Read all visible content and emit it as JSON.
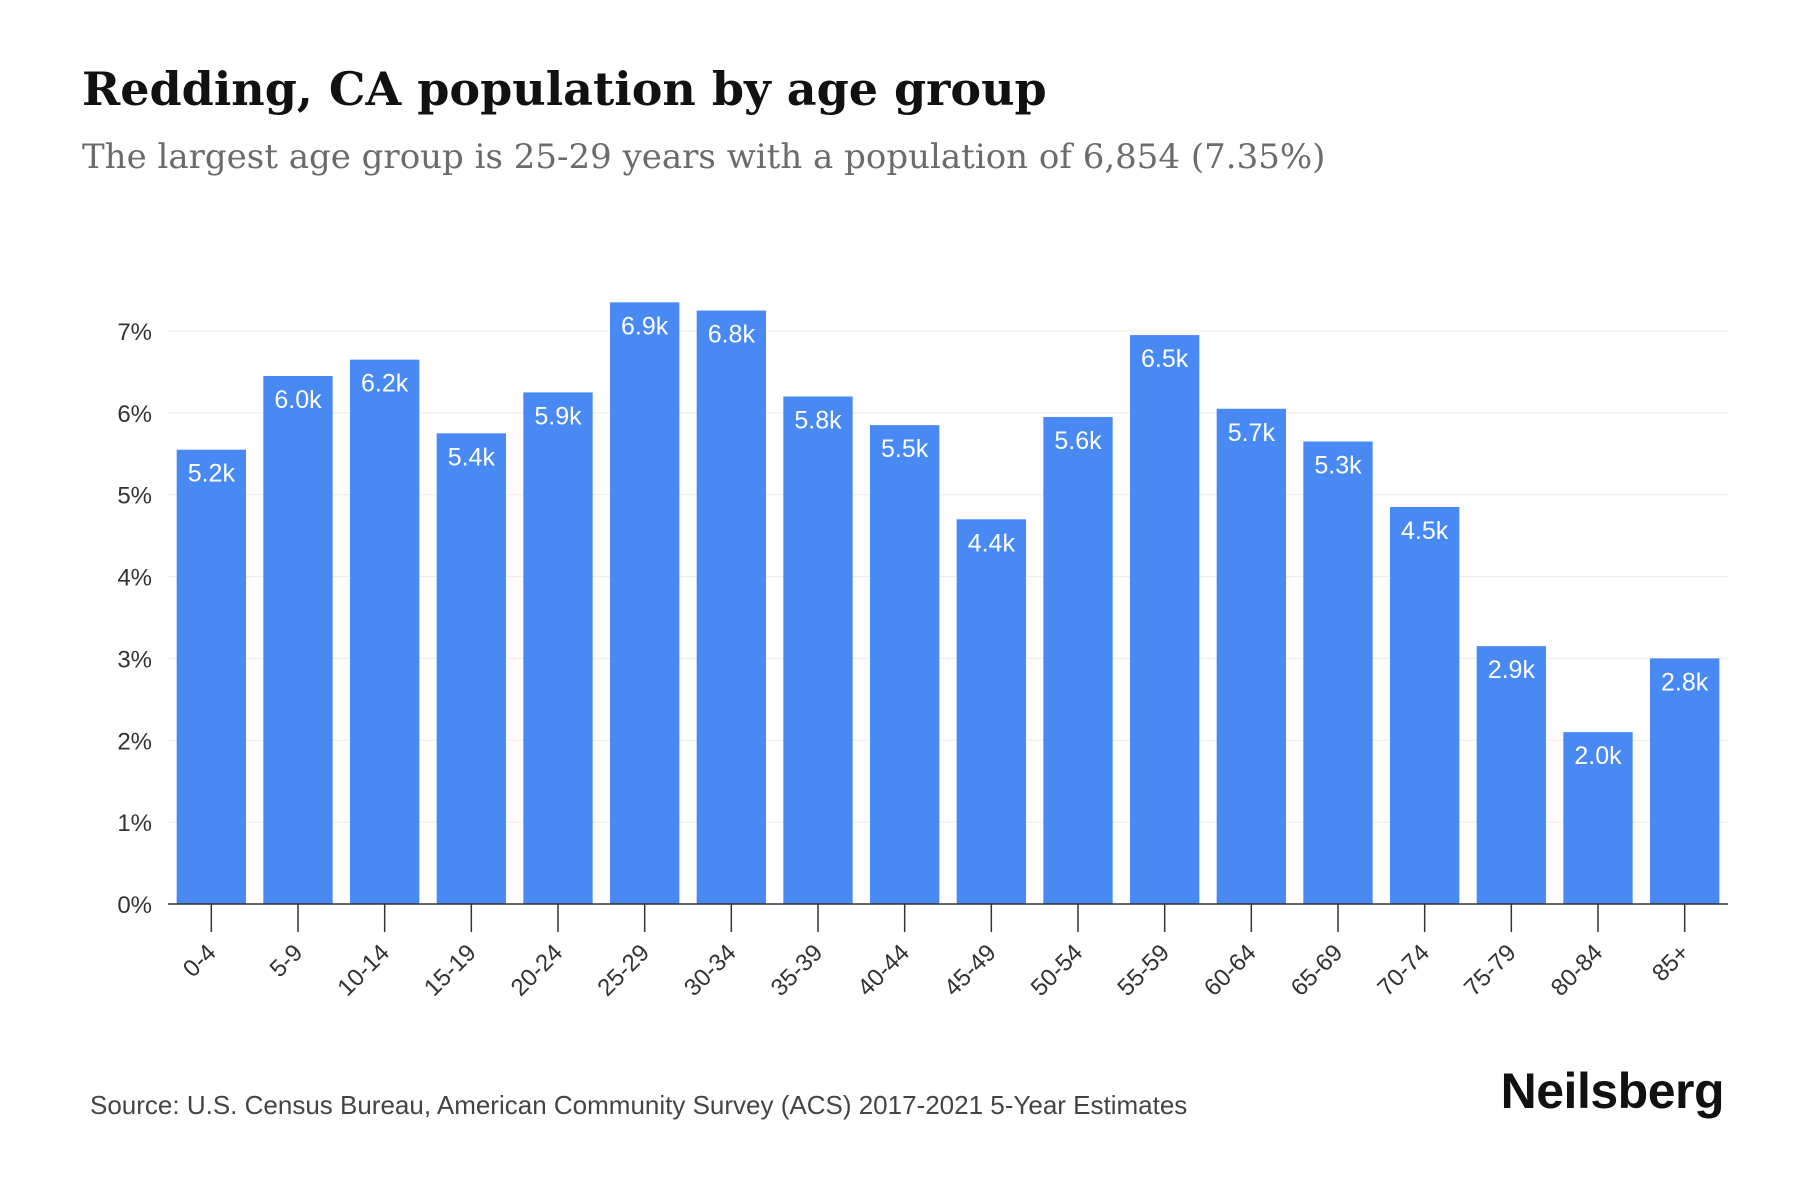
{
  "title": "Redding, CA population by age group",
  "subtitle": "The largest age group is 25-29 years with a population of 6,854 (7.35%)",
  "source": "Source: U.S. Census Bureau, American Community Survey (ACS) 2017-2021 5-Year Estimates",
  "brand": "Neilsberg",
  "colors": {
    "bar": "#4889f4",
    "grid": "#ececec",
    "axis": "#333333",
    "tick_text": "#333333",
    "label_text": "#ffffff"
  },
  "chart_data": {
    "type": "bar",
    "title": "Redding, CA population by age group",
    "xlabel": "",
    "ylabel": "",
    "ylim": [
      0,
      7.35
    ],
    "yticks": [
      0,
      1,
      2,
      3,
      4,
      5,
      6,
      7
    ],
    "ytick_labels": [
      "0%",
      "1%",
      "2%",
      "3%",
      "4%",
      "5%",
      "6%",
      "7%"
    ],
    "grid": true,
    "categories": [
      "0-4",
      "5-9",
      "10-14",
      "15-19",
      "20-24",
      "25-29",
      "30-34",
      "35-39",
      "40-44",
      "45-49",
      "50-54",
      "55-59",
      "60-64",
      "65-69",
      "70-74",
      "75-79",
      "80-84",
      "85+"
    ],
    "values": [
      5.55,
      6.45,
      6.65,
      5.75,
      6.25,
      7.35,
      7.25,
      6.2,
      5.85,
      4.7,
      5.95,
      6.95,
      6.05,
      5.65,
      4.85,
      3.15,
      2.1,
      3.0
    ],
    "data_labels": [
      "5.2k",
      "6.0k",
      "6.2k",
      "5.4k",
      "5.9k",
      "6.9k",
      "6.8k",
      "5.8k",
      "5.5k",
      "4.4k",
      "5.6k",
      "6.5k",
      "5.7k",
      "5.3k",
      "4.5k",
      "2.9k",
      "2.0k",
      "2.8k"
    ]
  }
}
